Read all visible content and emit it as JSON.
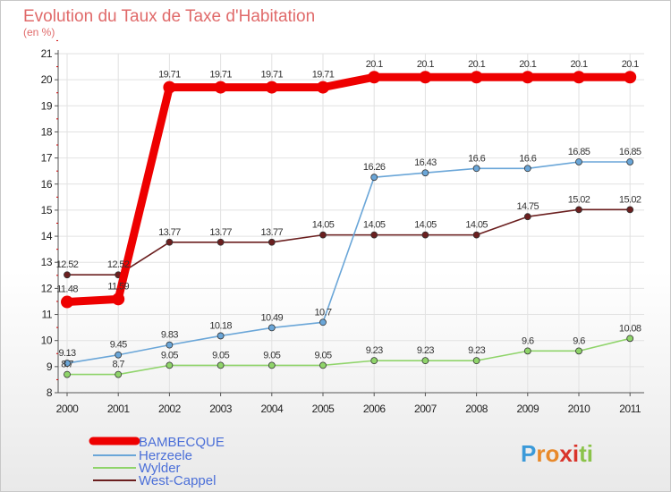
{
  "chart_data": {
    "type": "line",
    "title": "Evolution du Taux de Taxe d'Habitation",
    "subtitle": "(en %)",
    "x": [
      "2000",
      "2001",
      "2002",
      "2003",
      "2004",
      "2005",
      "2006",
      "2007",
      "2008",
      "2009",
      "2010",
      "2011"
    ],
    "ylim": [
      8,
      21
    ],
    "yticks": [
      "8",
      "9",
      "10",
      "11",
      "12",
      "13",
      "14",
      "15",
      "16",
      "17",
      "18",
      "19",
      "20",
      "21"
    ],
    "series": [
      {
        "name": "West-Cappel",
        "color": "#6b1f1f",
        "values": [
          12.52,
          12.52,
          13.77,
          13.77,
          13.77,
          14.05,
          14.05,
          14.05,
          14.05,
          14.75,
          15.02,
          15.02
        ],
        "labels": [
          "12.52",
          "12.52",
          "13.77",
          "13.77",
          "13.77",
          "14.05",
          "14.05",
          "14.05",
          "14.05",
          "14.75",
          "15.02",
          "15.02"
        ]
      },
      {
        "name": "Herzeele",
        "color": "#6aa6d8",
        "values": [
          9.13,
          9.45,
          9.83,
          10.18,
          10.49,
          10.7,
          16.26,
          16.43,
          16.6,
          16.6,
          16.85,
          16.85
        ],
        "labels": [
          "9.13",
          "9.45",
          "9.83",
          "10.18",
          "10.49",
          "10.7",
          "16.26",
          "16.43",
          "16.6",
          "16.6",
          "16.85",
          "16.85"
        ]
      },
      {
        "name": "Wylder",
        "color": "#8fd46a",
        "values": [
          8.7,
          8.7,
          9.05,
          9.05,
          9.05,
          9.05,
          9.23,
          9.23,
          9.23,
          9.6,
          9.6,
          10.08
        ],
        "labels": [
          "8.7",
          "8.7",
          "9.05",
          "9.05",
          "9.05",
          "9.05",
          "9.23",
          "9.23",
          "9.23",
          "9.6",
          "9.6",
          "10.08"
        ]
      },
      {
        "name": "BAMBECQUE",
        "color": "#ee0000",
        "values": [
          11.48,
          11.59,
          19.71,
          19.71,
          19.71,
          19.71,
          20.1,
          20.1,
          20.1,
          20.1,
          20.1,
          20.1
        ],
        "labels": [
          "11.48",
          "11.59",
          "19.71",
          "19.71",
          "19.71",
          "19.71",
          "20.1",
          "20.1",
          "20.1",
          "20.1",
          "20.1",
          "20.1"
        ]
      }
    ],
    "legend": [
      "BAMBECQUE",
      "Herzeele",
      "Wylder",
      "West-Cappel"
    ],
    "legend_position": "bottom-left"
  },
  "legend_colors": {
    "BAMBECQUE": "#ee0000",
    "Herzeele": "#6aa6d8",
    "Wylder": "#8fd46a",
    "West-Cappel": "#6b1f1f"
  },
  "legend_text_color": "#4b6fd8",
  "brand": {
    "text": "Proxiti",
    "letters": [
      "P",
      "r",
      "o",
      "x",
      "i",
      "t",
      "i"
    ],
    "colors": [
      "#3b9ad9",
      "#e8892a",
      "#e8892a",
      "#d9342b",
      "#d9342b",
      "#8bc34a",
      "#8bc34a"
    ]
  }
}
